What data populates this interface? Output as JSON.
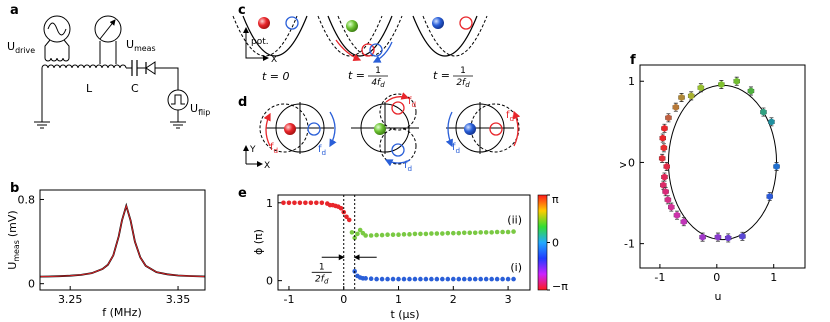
{
  "panel_a": {
    "panel": "a",
    "labels": [
      {
        "text": "U",
        "sub": "drive"
      },
      {
        "text": "U",
        "sub": "meas"
      },
      {
        "text": "L"
      },
      {
        "text": "C"
      },
      {
        "text": "U",
        "sub": "flip"
      }
    ]
  },
  "panel_c": {
    "panel": "c",
    "axis_y": "pot.",
    "axis_x": "X",
    "times": [
      {
        "text": "t = 0"
      },
      {
        "prefix": "t =",
        "num": "1",
        "den": "4f",
        "den_sub": "d"
      },
      {
        "prefix": "t =",
        "num": "1",
        "den": "2f",
        "den_sub": "d"
      }
    ]
  },
  "panel_d": {
    "panel": "d",
    "axis_y": "Y",
    "axis_x": "X",
    "fd_labels": [
      {
        "text": "f",
        "sub": "d",
        "color": "#e8262b"
      },
      {
        "text": "f",
        "sub": "d",
        "color": "#2a5fd8"
      },
      {
        "text": "f",
        "sub": "d",
        "color": "#e8262b"
      },
      {
        "text": "f",
        "sub": "d",
        "color": "#2a5fd8"
      },
      {
        "text": "f",
        "sub": "d",
        "color": "#2a5fd8"
      },
      {
        "text": "f",
        "sub": "d",
        "color": "#e8262b"
      }
    ]
  },
  "chart_data": [
    {
      "type": "line",
      "panel": "b",
      "xlabel": "f (MHz)",
      "ylabel": {
        "text": "U",
        "sub": "meas",
        "unit": "(mV)"
      },
      "xlim": [
        3.222,
        3.375
      ],
      "ylim": [
        -0.06,
        0.89
      ],
      "xticks": [
        3.25,
        3.35
      ],
      "yticks": [
        0,
        0.8
      ],
      "x": [
        3.222,
        3.23,
        3.24,
        3.25,
        3.26,
        3.27,
        3.28,
        3.285,
        3.29,
        3.295,
        3.298,
        3.302,
        3.306,
        3.31,
        3.315,
        3.32,
        3.33,
        3.34,
        3.35,
        3.36,
        3.375
      ],
      "series": [
        {
          "color": "#000000",
          "values": [
            0.067,
            0.068,
            0.071,
            0.076,
            0.084,
            0.1,
            0.14,
            0.18,
            0.27,
            0.45,
            0.6,
            0.74,
            0.6,
            0.4,
            0.25,
            0.17,
            0.11,
            0.089,
            0.078,
            0.073,
            0.068
          ]
        },
        {
          "color": "#e8262b",
          "values": [
            0.067,
            0.068,
            0.071,
            0.076,
            0.084,
            0.1,
            0.14,
            0.18,
            0.27,
            0.45,
            0.6,
            0.74,
            0.6,
            0.4,
            0.25,
            0.17,
            0.11,
            0.089,
            0.078,
            0.073,
            0.068
          ]
        }
      ]
    },
    {
      "type": "line",
      "markers": true,
      "panel": "e",
      "xlabel": "t (µs)",
      "ylabel": "ϕ (π)",
      "xlim": [
        -1.2,
        3.4
      ],
      "ylim": [
        -0.12,
        1.1
      ],
      "xticks": [
        -1,
        0,
        1,
        2,
        3
      ],
      "yticks": [
        0,
        1
      ],
      "vlines": [
        0,
        0.2
      ],
      "annotation": {
        "num": "1",
        "den": "2f",
        "den_sub": "d"
      },
      "series": [
        {
          "color": "#e8262b",
          "x": [
            -1.1,
            -1.0,
            -0.9,
            -0.8,
            -0.7,
            -0.6,
            -0.5,
            -0.4,
            -0.3,
            -0.25,
            -0.2,
            -0.15,
            -0.1,
            -0.05,
            0.0,
            0.05,
            0.1
          ],
          "values": [
            1,
            1,
            1,
            1,
            1,
            1,
            1,
            1,
            0.99,
            0.97,
            0.97,
            0.96,
            0.95,
            0.93,
            0.88,
            0.82,
            0.78
          ]
        },
        {
          "name": "(ii)",
          "color": "#7ac943",
          "x": [
            0.15,
            0.2,
            0.25,
            0.3,
            0.35,
            0.4,
            0.5,
            0.6,
            0.7,
            0.8,
            0.9,
            1.0,
            1.1,
            1.2,
            1.3,
            1.4,
            1.5,
            1.6,
            1.7,
            1.8,
            1.9,
            2.0,
            2.1,
            2.2,
            2.3,
            2.4,
            2.5,
            2.6,
            2.7,
            2.8,
            2.9,
            3.0,
            3.1
          ],
          "values": [
            0.62,
            0.55,
            0.6,
            0.65,
            0.61,
            0.58,
            0.58,
            0.585,
            0.585,
            0.59,
            0.59,
            0.59,
            0.595,
            0.595,
            0.6,
            0.6,
            0.6,
            0.605,
            0.605,
            0.605,
            0.61,
            0.61,
            0.61,
            0.615,
            0.615,
            0.615,
            0.62,
            0.62,
            0.62,
            0.625,
            0.625,
            0.625,
            0.63
          ]
        },
        {
          "name": "(i)",
          "color": "#2a5fd8",
          "x": [
            0.2,
            0.25,
            0.3,
            0.35,
            0.4,
            0.5,
            0.6,
            0.7,
            0.8,
            0.9,
            1.0,
            1.1,
            1.2,
            1.3,
            1.4,
            1.5,
            1.6,
            1.7,
            1.8,
            1.9,
            2.0,
            2.1,
            2.2,
            2.3,
            2.4,
            2.5,
            2.6,
            2.7,
            2.8,
            2.9,
            3.0,
            3.1
          ],
          "values": [
            0.12,
            0.06,
            0.04,
            0.03,
            0.03,
            0.025,
            0.02,
            0.02,
            0.02,
            0.02,
            0.02,
            0.02,
            0.02,
            0.02,
            0.02,
            0.02,
            0.02,
            0.02,
            0.02,
            0.02,
            0.02,
            0.02,
            0.02,
            0.02,
            0.02,
            0.02,
            0.02,
            0.02,
            0.02,
            0.02,
            0.02,
            0.02
          ]
        }
      ],
      "colorbar": {
        "clim": [
          -1,
          1
        ],
        "colors": [
          "#ff1a1a",
          "#ffcc00",
          "#33dd33",
          "#22aaff",
          "#1f3cff",
          "#cc22ff",
          "#ff1a1a"
        ],
        "ticks": [
          {
            "value": 1,
            "label": "π"
          },
          0,
          {
            "value": -1,
            "label": "−π"
          }
        ]
      }
    },
    {
      "type": "scatter",
      "panel": "f",
      "xlabel": "u",
      "ylabel": "v",
      "xlim": [
        -1.35,
        1.55
      ],
      "ylim": [
        -1.3,
        1.2
      ],
      "xticks": [
        -1,
        0,
        1
      ],
      "yticks": [
        -1,
        0,
        1
      ],
      "xerr": 0.05,
      "yerr": 0.05,
      "fit_circle": {
        "center": [
          0.1,
          0
        ],
        "radius": 0.95
      },
      "x": [
        -0.92,
        -0.95,
        -0.93,
        -0.96,
        -0.88,
        -0.92,
        -0.94,
        -0.9,
        -0.86,
        -0.8,
        -0.7,
        -0.58,
        -0.25,
        0.02,
        0.2,
        0.45,
        0.93,
        1.05,
        0.96,
        0.82,
        0.6,
        0.35,
        0.08,
        -0.28,
        -0.45,
        -0.62,
        -0.72,
        -0.85
      ],
      "values": [
        0.42,
        0.3,
        0.18,
        0.05,
        -0.05,
        -0.18,
        -0.28,
        -0.36,
        -0.46,
        -0.55,
        -0.65,
        -0.73,
        -0.92,
        -0.92,
        -0.93,
        -0.91,
        -0.42,
        -0.05,
        0.5,
        0.62,
        0.88,
        1.0,
        0.96,
        0.92,
        0.82,
        0.8,
        0.68,
        0.55
      ],
      "colors": [
        "#e8262b",
        "#e8262b",
        "#e83030",
        "#e0303a",
        "#e02c48",
        "#e02858",
        "#dc2a68",
        "#d82a78",
        "#d43088",
        "#d43298",
        "#cc34aa",
        "#c036b8",
        "#a038c8",
        "#8a3ccc",
        "#7040d0",
        "#5a48d4",
        "#2c5ad8",
        "#2070d0",
        "#2090a0",
        "#30a080",
        "#50b040",
        "#70bb30",
        "#80c030",
        "#98c030",
        "#a8b030",
        "#b08838",
        "#b87a38",
        "#c06040"
      ]
    }
  ]
}
